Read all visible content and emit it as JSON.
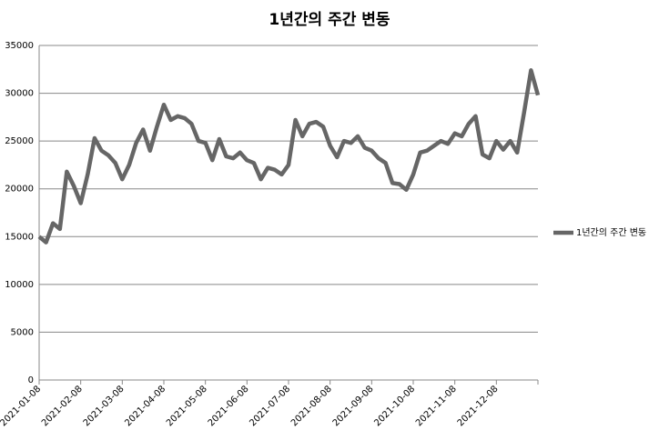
{
  "chart_data": {
    "type": "line",
    "title": "1년간의 주간 변동",
    "categories": [
      "2021-01-08",
      null,
      null,
      null,
      null,
      null,
      "2021-02-08",
      null,
      null,
      null,
      null,
      null,
      "2021-03-08",
      null,
      null,
      null,
      null,
      null,
      "2021-04-08",
      null,
      null,
      null,
      null,
      null,
      "2021-05-08",
      null,
      null,
      null,
      null,
      null,
      "2021-06-08",
      null,
      null,
      null,
      null,
      null,
      "2021-07-08",
      null,
      null,
      null,
      null,
      null,
      "2021-08-08",
      null,
      null,
      null,
      null,
      null,
      "2021-09-08",
      null,
      null,
      null,
      null,
      null,
      "2021-10-08",
      null,
      null,
      null,
      null,
      null,
      "2021-11-08",
      null,
      null,
      null,
      null,
      null,
      "2021-12-08",
      null,
      null,
      null,
      null,
      null,
      null
    ],
    "series": [
      {
        "name": "1년간의 주간 변동",
        "color": "#666666",
        "values": [
          15000,
          14400,
          16400,
          15800,
          21800,
          20300,
          18500,
          21500,
          25300,
          24000,
          23500,
          22700,
          21000,
          22500,
          24800,
          26200,
          24000,
          26500,
          28800,
          27200,
          27600,
          27400,
          26800,
          25000,
          24800,
          23000,
          25200,
          23400,
          23200,
          23800,
          23000,
          22700,
          21000,
          22200,
          22000,
          21500,
          22500,
          27200,
          25500,
          26800,
          27000,
          26500,
          24500,
          23300,
          25000,
          24800,
          25500,
          24300,
          24000,
          23200,
          22700,
          20600,
          20500,
          19900,
          21500,
          23800,
          24000,
          24500,
          25000,
          24700,
          25800,
          25500,
          26800,
          27600,
          23600,
          23200,
          25000,
          24100,
          25000,
          23800,
          28000,
          32400,
          29800
        ]
      }
    ],
    "ylim": [
      0,
      35000
    ],
    "yticks": [
      0,
      5000,
      10000,
      15000,
      20000,
      25000,
      30000,
      35000
    ],
    "grid": true,
    "legend": "right"
  }
}
